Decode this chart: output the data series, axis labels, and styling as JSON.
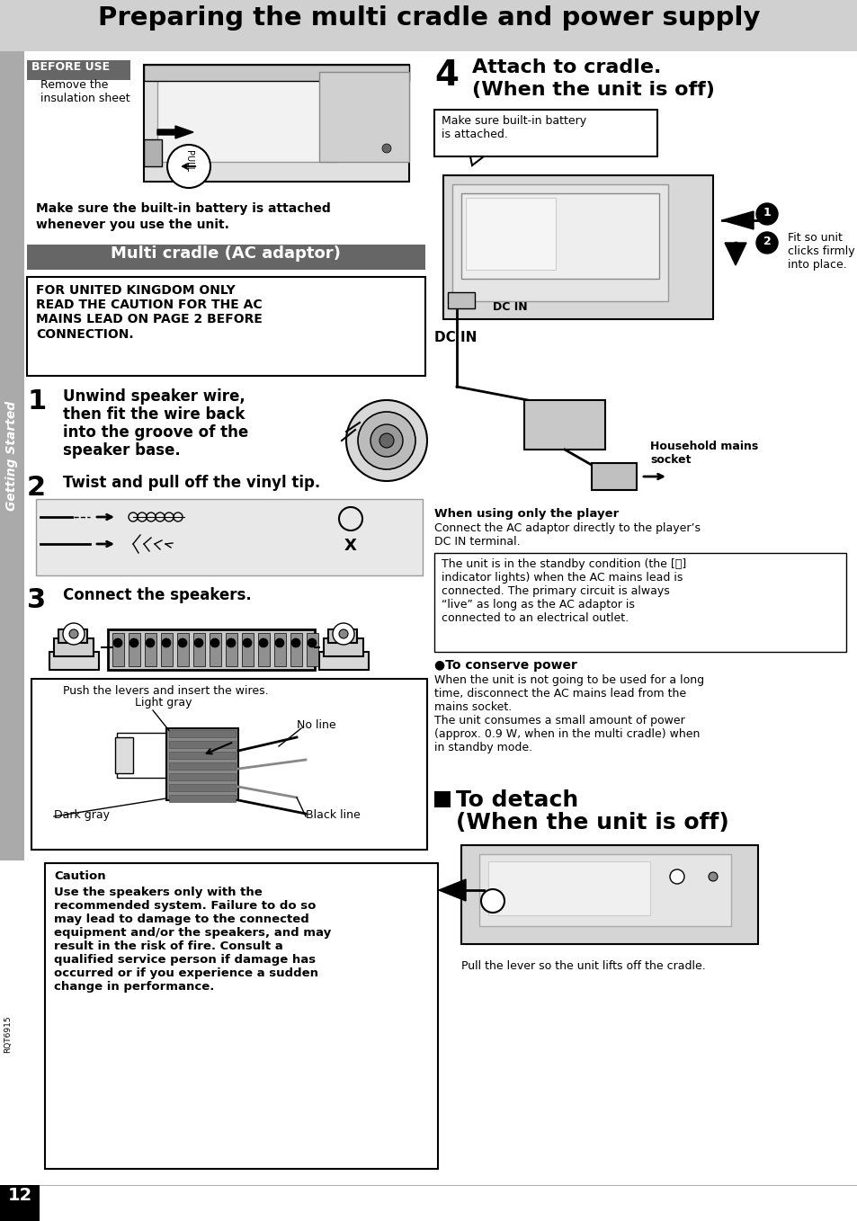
{
  "title": "Preparing the multi cradle and power supply",
  "page_bg": "#ffffff",
  "title_bg": "#d0d0d0",
  "page_num": "12",
  "sidebar_label": "Getting Started",
  "sidebar_bg": "#aaaaaa",
  "before_use_label": "BEFORE USE",
  "before_use_bg": "#666666",
  "multi_cradle_label": "Multi cradle (AC adaptor)",
  "multi_cradle_bg": "#666666",
  "uk_warning": "FOR UNITED KINGDOM ONLY\nREAD THE CAUTION FOR THE AC\nMAINS LEAD ON PAGE 2 BEFORE\nCONNECTION.",
  "step1_line1": "Unwind speaker wire,",
  "step1_line2": "then fit the wire back",
  "step1_line3": "into the groove of the",
  "step1_line4": "speaker base.",
  "step2_text": "Twist and pull off the vinyl tip.",
  "step3_text": "Connect the speakers.",
  "push_levers": "Push the levers and insert the wires.",
  "light_gray": "Light gray",
  "no_line": "No line",
  "dark_gray": "Dark gray",
  "black_line": "Black line",
  "remove_insulation": "Remove the\ninsulation sheet",
  "battery_note_line1": "Make sure the built-in battery is attached",
  "battery_note_line2": "whenever you use the unit.",
  "caution_title": "Caution",
  "caution_body": "Use the speakers only with the\nrecommended system. Failure to do so\nmay lead to damage to the connected\nequipment and/or the speakers, and may\nresult in the risk of fire. Consult a\nqualified service person if damage has\noccurred or if you experience a sudden\nchange in performance.",
  "rqt_label": "RQT6915",
  "step4_num": "4",
  "step4_title1": "Attach to cradle.",
  "step4_title2": "(When the unit is off)",
  "make_sure_battery": "Make sure built-in battery\nis attached.",
  "fit_clicks": "Fit so unit\nclicks firmly\ninto place.",
  "dc_in_label1": "DC IN",
  "dc_in_label2": "DC IN",
  "household_mains": "Household mains\nsocket",
  "when_using_only": "When using only the player",
  "connect_ac": "Connect the AC adaptor directly to the player’s\nDC IN terminal.",
  "standby_note": "The unit is in the standby condition (the [⏻]\nindicator lights) when the AC mains lead is\nconnected. The primary circuit is always\n“live” as long as the AC adaptor is\nconnected to an electrical outlet.",
  "to_conserve_hdr": "●To conserve power",
  "conserve_body": "When the unit is not going to be used for a long\ntime, disconnect the AC mains lead from the\nmains socket.\nThe unit consumes a small amount of power\n(approx. 0.9 W, when in the multi cradle) when\nin standby mode.",
  "to_detach": "■  To detach",
  "when_unit_off2": "(When the unit is off)",
  "pull_lever": "Pull the lever so the unit lifts off the cradle."
}
